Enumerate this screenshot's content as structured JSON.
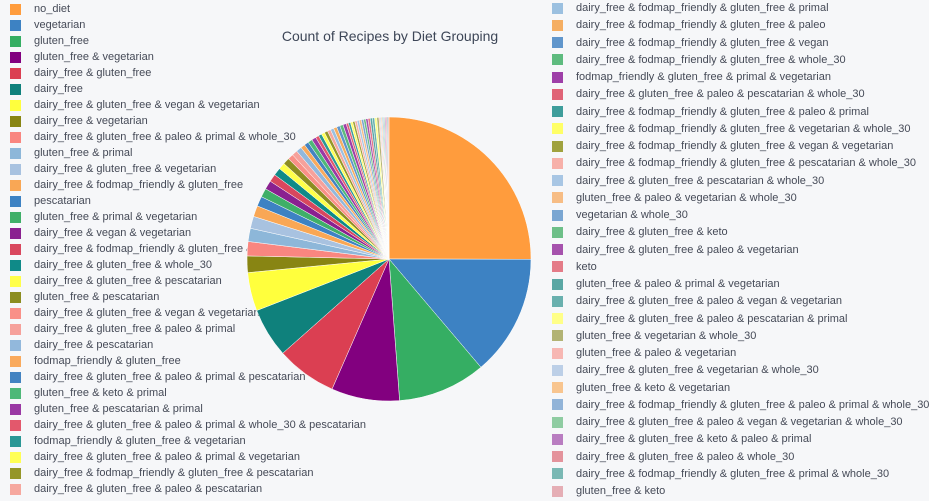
{
  "chart_data": {
    "type": "pie",
    "title": "Count of Recipes by Diet Grouping",
    "legend_placement": "left and right",
    "labels": [
      "no_diet",
      "vegetarian",
      "gluten_free",
      "gluten_free & vegetarian",
      "dairy_free & gluten_free",
      "dairy_free",
      "dairy_free & gluten_free & vegan & vegetarian",
      "dairy_free & vegetarian",
      "dairy_free & gluten_free & paleo & primal & whole_30",
      "gluten_free & primal",
      "dairy_free & gluten_free & vegetarian",
      "dairy_free & fodmap_friendly & gluten_free",
      "pescatarian",
      "gluten_free & primal & vegetarian",
      "dairy_free & vegan & vegetarian",
      "dairy_free & fodmap_friendly & gluten_free & vegetarian",
      "dairy_free & gluten_free & whole_30",
      "dairy_free & gluten_free & pescatarian",
      "gluten_free & pescatarian",
      "dairy_free & gluten_free & vegan & vegetarian & whole_30",
      "dairy_free & gluten_free & paleo & primal",
      "dairy_free & pescatarian",
      "fodmap_friendly & gluten_free",
      "dairy_free & gluten_free & paleo & primal & pescatarian",
      "gluten_free & keto & primal",
      "gluten_free & pescatarian & primal",
      "dairy_free & gluten_free & paleo & primal & whole_30 & pescatarian",
      "fodmap_friendly & gluten_free & vegetarian",
      "dairy_free & gluten_free & paleo & primal & vegetarian",
      "dairy_free & fodmap_friendly & gluten_free & pescatarian",
      "dairy_free & gluten_free & paleo & pescatarian",
      "dairy_free & fodmap_friendly & gluten_free & primal",
      "dairy_free & fodmap_friendly & gluten_free & paleo",
      "dairy_free & fodmap_friendly & gluten_free & vegan",
      "dairy_free & fodmap_friendly & gluten_free & whole_30",
      "fodmap_friendly & gluten_free & primal & vegetarian",
      "dairy_free & gluten_free & paleo & pescatarian & whole_30",
      "dairy_free & fodmap_friendly & gluten_free & paleo & primal",
      "dairy_free & fodmap_friendly & gluten_free & vegetarian & whole_30",
      "dairy_free & fodmap_friendly & gluten_free & vegan & vegetarian",
      "dairy_free & fodmap_friendly & gluten_free & pescatarian & whole_30",
      "dairy_free & gluten_free & pescatarian & whole_30",
      "gluten_free & paleo & vegetarian & whole_30",
      "vegetarian & whole_30",
      "dairy_free & gluten_free & keto",
      "dairy_free & gluten_free & paleo & vegetarian",
      "keto",
      "gluten_free & paleo & primal & vegetarian",
      "dairy_free & gluten_free & paleo & vegan & vegetarian",
      "dairy_free & gluten_free & paleo & pescatarian & primal",
      "gluten_free & vegetarian & whole_30",
      "gluten_free & paleo & vegetarian",
      "dairy_free & gluten_free & vegetarian & whole_30",
      "gluten_free & keto & vegetarian",
      "dairy_free & fodmap_friendly & gluten_free & paleo & primal & whole_30",
      "dairy_free & gluten_free & paleo & vegan & vegetarian & whole_30",
      "dairy_free & gluten_free & keto & paleo & primal",
      "dairy_free & gluten_free & paleo & whole_30",
      "dairy_free & fodmap_friendly & gluten_free & primal & whole_30",
      "gluten_free & keto"
    ],
    "values": [
      200,
      110,
      80,
      62,
      55,
      45,
      35,
      15,
      13,
      12,
      11,
      10,
      9,
      8,
      8,
      7,
      7,
      6,
      6,
      5,
      5,
      5,
      4,
      4,
      4,
      4,
      3,
      3,
      3,
      3,
      3,
      3,
      3,
      3,
      3,
      3,
      2,
      2,
      2,
      2,
      2,
      2,
      2,
      2,
      2,
      2,
      2,
      2,
      2,
      2,
      2,
      1,
      1,
      1,
      1,
      1,
      1,
      1,
      1,
      1
    ],
    "colors": [
      "#ff9c3d",
      "#3d82c3",
      "#35ae63",
      "#82007f",
      "#db3f52",
      "#0f817c",
      "#ffff3d",
      "#888513",
      "#f98680",
      "#8db7d9",
      "#a8c2e0",
      "#f9a755",
      "#3d82c3",
      "#3faf68",
      "#8a2090",
      "#d9475e",
      "#0f8a88",
      "#ffff4a",
      "#8c8d20",
      "#f99088",
      "#f6a19b",
      "#92b8dc",
      "#f9aa5d",
      "#4383c1",
      "#4eb878",
      "#9a38a4",
      "#e3586c",
      "#2a9795",
      "#ffff55",
      "#959628",
      "#f6a89f",
      "#9bc0e0",
      "#f5ae62",
      "#6096cc",
      "#5ebb7f",
      "#9e3fa8",
      "#e06477",
      "#3e9d9b",
      "#ffff66",
      "#a0a23e",
      "#f7b0a9",
      "#a8c6e4",
      "#f7bd85",
      "#7aa6d2",
      "#6dbf88",
      "#a652ad",
      "#e47b88",
      "#5aa7a4",
      "#69b0ae",
      "#ffff88",
      "#b2b374",
      "#f7b7b3",
      "#bccfe7",
      "#f8c58f",
      "#92b4d8",
      "#8fcca2",
      "#b97dc1",
      "#e4939c",
      "#7ab8b4",
      "#e5aeb5"
    ]
  },
  "legend_left_labels": [
    "no_diet",
    "vegetarian",
    "gluten_free",
    "gluten_free & vegetarian",
    "dairy_free & gluten_free",
    "dairy_free",
    "dairy_free & gluten_free & vegan & vegetarian",
    "dairy_free & vegetarian",
    "dairy_free & gluten_free & paleo & primal & whole_30",
    "gluten_free & primal",
    "dairy_free & gluten_free & vegetarian",
    "dairy_free & fodmap_friendly & gluten_free",
    "pescatarian",
    "gluten_free & primal & vegetarian",
    "dairy_free & vegan & vegetarian",
    "dairy_free & fodmap_friendly & gluten_free & vegetarian",
    "dairy_free & gluten_free & whole_30",
    "dairy_free & gluten_free & pescatarian",
    "gluten_free & pescatarian",
    "dairy_free & gluten_free & vegan & vegetarian & whole_30",
    "dairy_free & gluten_free & paleo & primal",
    "dairy_free & pescatarian",
    "fodmap_friendly & gluten_free",
    "dairy_free & gluten_free & paleo & primal & pescatarian",
    "gluten_free & keto & primal",
    "gluten_free & pescatarian & primal",
    "dairy_free & gluten_free & paleo & primal & whole_30 & pescatarian",
    "fodmap_friendly & gluten_free & vegetarian",
    "dairy_free & gluten_free & paleo & primal & vegetarian",
    "dairy_free & fodmap_friendly & gluten_free & pescatarian",
    "dairy_free & gluten_free & paleo & pescatarian"
  ],
  "legend_right_labels": [
    "dairy_free & fodmap_friendly & gluten_free & primal",
    "dairy_free & fodmap_friendly & gluten_free & paleo",
    "dairy_free & fodmap_friendly & gluten_free & vegan",
    "dairy_free & fodmap_friendly & gluten_free & whole_30",
    "fodmap_friendly & gluten_free & primal & vegetarian",
    "dairy_free & gluten_free & paleo & pescatarian & whole_30",
    "dairy_free & fodmap_friendly & gluten_free & paleo & primal",
    "dairy_free & fodmap_friendly & gluten_free & vegetarian & whole_30",
    "dairy_free & fodmap_friendly & gluten_free & vegan & vegetarian",
    "dairy_free & fodmap_friendly & gluten_free & pescatarian & whole_30",
    "dairy_free & gluten_free & pescatarian & whole_30",
    "gluten_free & paleo & vegetarian & whole_30",
    "vegetarian & whole_30",
    "dairy_free & gluten_free & keto",
    "dairy_free & gluten_free & paleo & vegetarian",
    "keto",
    "gluten_free & paleo & primal & vegetarian",
    "dairy_free & gluten_free & paleo & vegan & vegetarian",
    "dairy_free & gluten_free & paleo & pescatarian & primal",
    "gluten_free & vegetarian & whole_30",
    "gluten_free & paleo & vegetarian",
    "dairy_free & gluten_free & vegetarian & whole_30",
    "gluten_free & keto & vegetarian",
    "dairy_free & fodmap_friendly & gluten_free & paleo & primal & whole_30",
    "dairy_free & gluten_free & paleo & vegan & vegetarian & whole_30",
    "dairy_free & gluten_free & keto & paleo & primal",
    "dairy_free & gluten_free & paleo & whole_30",
    "dairy_free & fodmap_friendly & gluten_free & primal & whole_30",
    "gluten_free & keto"
  ]
}
